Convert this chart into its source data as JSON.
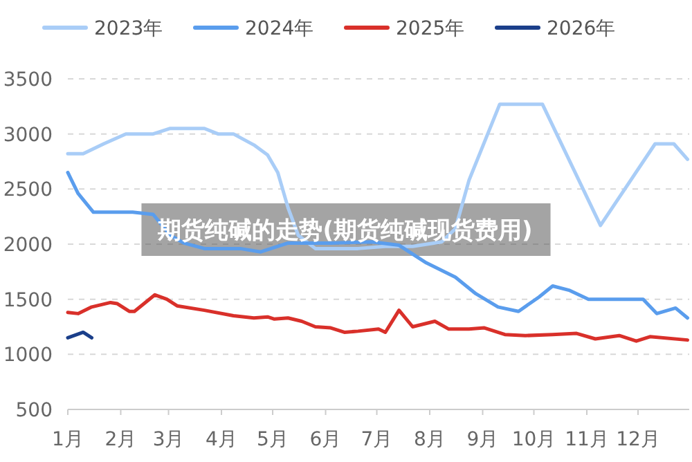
{
  "chart_data": {
    "type": "line",
    "title": "期货纯碱的走势(期货纯碱现货费用)",
    "xlim": [
      "--01-01",
      "--12-31"
    ],
    "xticks": [
      {
        "value": "--01-01",
        "label": "1月"
      },
      {
        "value": "--02-01",
        "label": "2月"
      },
      {
        "value": "--03-01",
        "label": "3月"
      },
      {
        "value": "--04-01",
        "label": "4月"
      },
      {
        "value": "--05-01",
        "label": "5月"
      },
      {
        "value": "--06-01",
        "label": "6月"
      },
      {
        "value": "--07-01",
        "label": "7月"
      },
      {
        "value": "--08-01",
        "label": "8月"
      },
      {
        "value": "--09-01",
        "label": "9月"
      },
      {
        "value": "--10-01",
        "label": "10月"
      },
      {
        "value": "--11-01",
        "label": "11月"
      },
      {
        "value": "--12-01",
        "label": "12月"
      }
    ],
    "ylim": [
      500,
      3500
    ],
    "yticks": [
      500,
      1000,
      1500,
      2000,
      2500,
      3000,
      3500
    ],
    "grid": "y",
    "legend": "top",
    "series": [
      {
        "name": "2023年",
        "color": "#a9cdf7",
        "x": [
          "--01-01",
          "--01-10",
          "--01-22",
          "--02-04",
          "--02-20",
          "--03-02",
          "--03-22",
          "--03-30",
          "--04-08",
          "--04-20",
          "--04-28",
          "--05-04",
          "--05-10",
          "--05-16",
          "--05-26",
          "--06-04",
          "--06-20",
          "--07-06",
          "--07-22",
          "--08-08",
          "--08-16",
          "--08-24",
          "--09-11",
          "--10-06",
          "--11-09",
          "--12-11",
          "--12-22",
          "--12-30"
        ],
        "values": [
          2820,
          2820,
          2910,
          3000,
          3000,
          3050,
          3050,
          3000,
          3000,
          2900,
          2810,
          2650,
          2330,
          2080,
          1960,
          1960,
          1960,
          1980,
          1980,
          2020,
          2140,
          2580,
          3270,
          3270,
          2170,
          2910,
          2910,
          2770
        ]
      },
      {
        "name": "2024年",
        "color": "#5a9ded",
        "x": [
          "--01-01",
          "--01-07",
          "--01-16",
          "--02-08",
          "--02-20",
          "--03-02",
          "--03-10",
          "--03-22",
          "--04-12",
          "--04-24",
          "--05-10",
          "--06-04",
          "--06-28",
          "--07-14",
          "--07-30",
          "--08-16",
          "--08-28",
          "--09-10",
          "--09-22",
          "--10-04",
          "--10-12",
          "--10-22",
          "--11-02",
          "--11-14",
          "--12-04",
          "--12-12",
          "--12-23",
          "--12-30"
        ],
        "values": [
          2650,
          2460,
          2290,
          2290,
          2270,
          2080,
          2010,
          1960,
          1960,
          1930,
          2010,
          2010,
          2020,
          1990,
          1830,
          1700,
          1550,
          1430,
          1390,
          1520,
          1620,
          1580,
          1500,
          1500,
          1500,
          1370,
          1420,
          1330
        ]
      },
      {
        "name": "2025年",
        "color": "#d9302a",
        "x": [
          "--01-01",
          "--01-07",
          "--01-15",
          "--01-26",
          "--01-30",
          "--02-06",
          "--02-09",
          "--02-21",
          "--02-28",
          "--03-06",
          "--03-22",
          "--04-08",
          "--04-20",
          "--04-28",
          "--05-02",
          "--05-10",
          "--05-18",
          "--05-26",
          "--06-04",
          "--06-12",
          "--06-20",
          "--07-02",
          "--07-06",
          "--07-14",
          "--07-22",
          "--08-04",
          "--08-12",
          "--08-24",
          "--09-02",
          "--09-14",
          "--09-26",
          "--10-12",
          "--10-26",
          "--11-06",
          "--11-20",
          "--11-30",
          "--12-08",
          "--12-30"
        ],
        "values": [
          1380,
          1370,
          1430,
          1470,
          1460,
          1390,
          1390,
          1540,
          1500,
          1440,
          1400,
          1350,
          1330,
          1340,
          1320,
          1330,
          1300,
          1250,
          1240,
          1200,
          1210,
          1230,
          1200,
          1400,
          1250,
          1300,
          1230,
          1230,
          1240,
          1180,
          1170,
          1180,
          1190,
          1140,
          1170,
          1120,
          1160,
          1130
        ]
      },
      {
        "name": "2026年",
        "color": "#1b3f8a",
        "x": [
          "--01-01",
          "--01-10",
          "--01-15"
        ],
        "values": [
          1150,
          1200,
          1150
        ]
      }
    ]
  }
}
